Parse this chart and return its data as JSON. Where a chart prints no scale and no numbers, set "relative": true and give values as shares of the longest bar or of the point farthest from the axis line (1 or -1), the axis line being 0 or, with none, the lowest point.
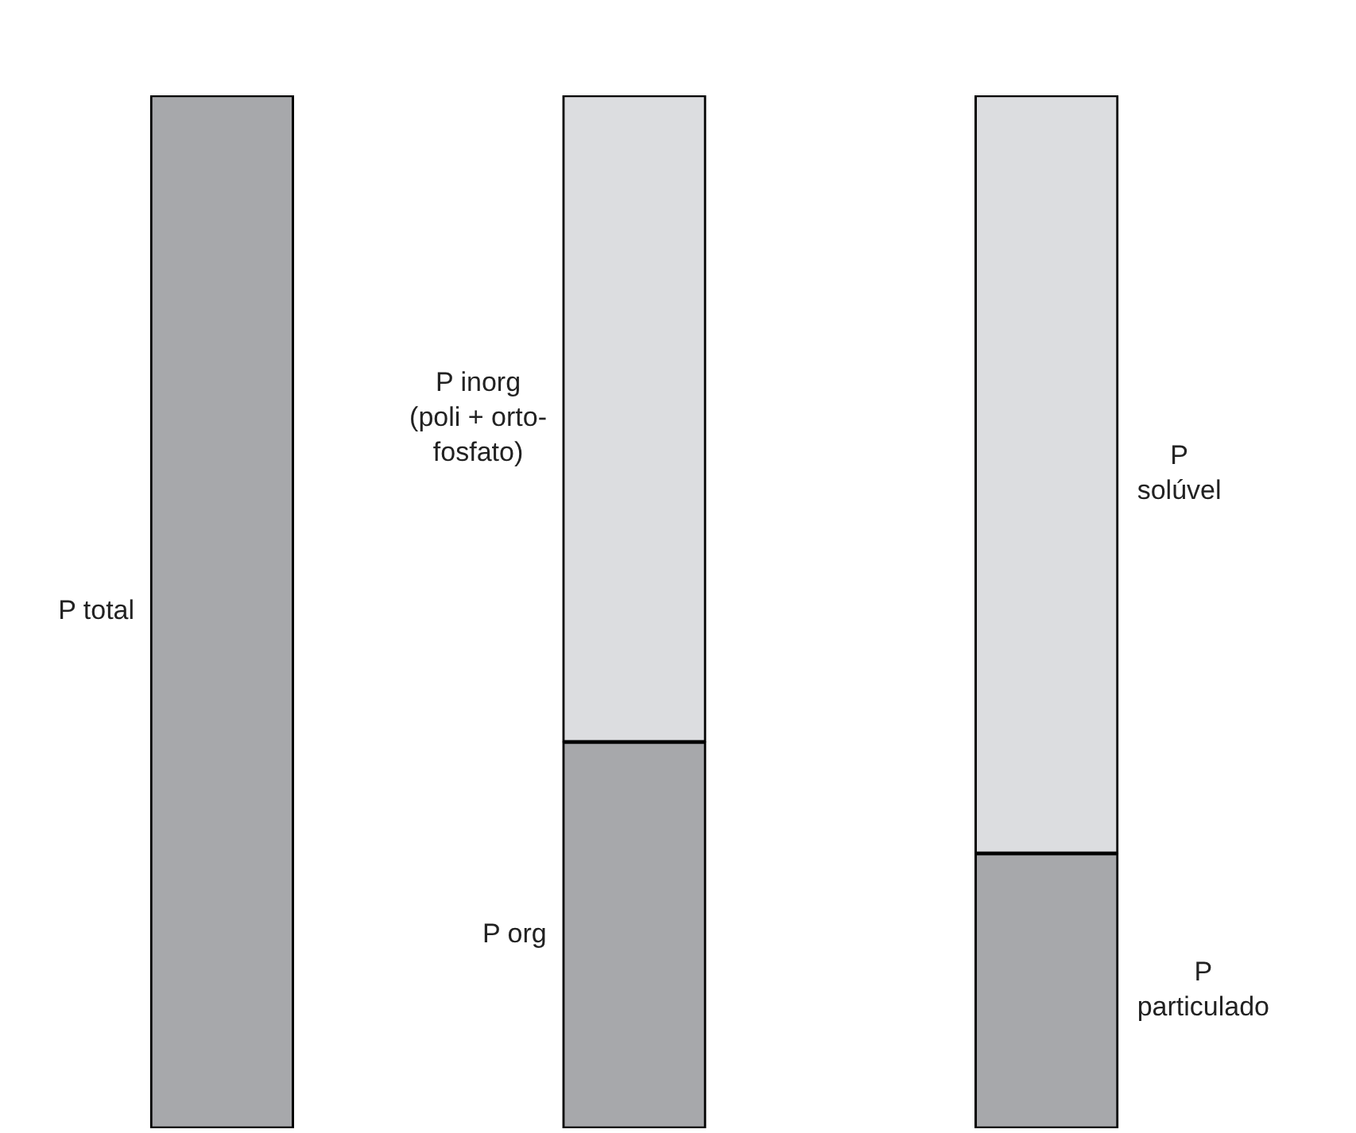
{
  "chart_data": {
    "type": "bar",
    "stacked": true,
    "relative": true,
    "categories": [
      null,
      null,
      null
    ],
    "series": [
      {
        "name": "P total",
        "color": "#a7a8ab",
        "values": [
          1,
          null,
          null
        ]
      },
      {
        "name": "P org",
        "color": "#a7a8ab",
        "values": [
          null,
          0.374,
          null
        ]
      },
      {
        "name": "P\nparticulado",
        "color": "#a7a8ab",
        "values": [
          null,
          null,
          0.266
        ]
      },
      {
        "name": "P inorg\n(poli + orto-\nfosfato)",
        "color": "#dcdde0",
        "values": [
          null,
          0.626,
          null
        ]
      },
      {
        "name": "P\nsolúvel",
        "color": "#dcdde0",
        "values": [
          null,
          null,
          0.734
        ]
      }
    ]
  }
}
